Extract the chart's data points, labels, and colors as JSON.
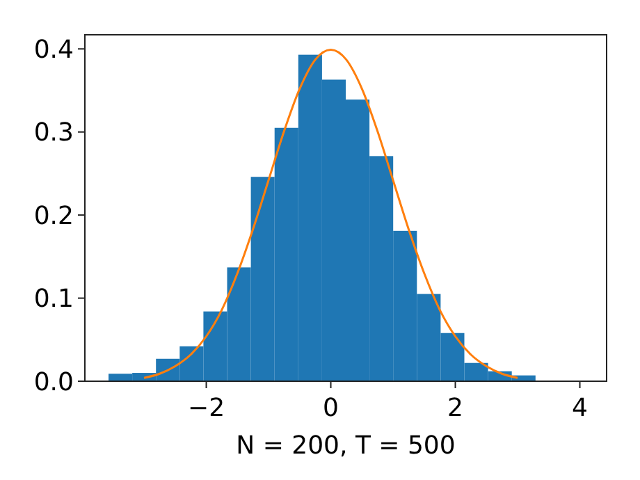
{
  "chart_data": {
    "type": "histogram",
    "xlabel": "N = 200, T = 500",
    "bins": [
      -3.57,
      -3.189,
      -2.808,
      -2.427,
      -2.046,
      -1.665,
      -1.284,
      -0.903,
      -0.522,
      -0.141,
      0.24,
      0.621,
      1.002,
      1.383,
      1.764,
      2.145,
      2.526,
      2.907,
      3.288
    ],
    "series": [
      {
        "color": "#1f77b4",
        "values": [
          0.009,
          0.01,
          0.027,
          0.042,
          0.084,
          0.137,
          0.246,
          0.305,
          0.393,
          0.363,
          0.339,
          0.271,
          0.181,
          0.105,
          0.058,
          0.022,
          0.012,
          0.007
        ]
      },
      {
        "type": "line",
        "color": "#ff7f0e",
        "x": [
          -3,
          -2.75,
          -2.5,
          -2.25,
          -2,
          -1.75,
          -1.5,
          -1.25,
          -1,
          -0.75,
          -0.5,
          -0.25,
          0,
          0.25,
          0.5,
          0.75,
          1,
          1.25,
          1.5,
          1.75,
          2,
          2.25,
          2.5,
          2.75,
          3
        ],
        "values": [
          0.004,
          0.009,
          0.018,
          0.032,
          0.054,
          0.086,
          0.13,
          0.183,
          0.242,
          0.301,
          0.352,
          0.387,
          0.399,
          0.387,
          0.352,
          0.301,
          0.242,
          0.183,
          0.13,
          0.086,
          0.054,
          0.032,
          0.018,
          0.009,
          0.004
        ]
      }
    ],
    "xlim": [
      -3.95,
      4.43
    ],
    "ylim": [
      0,
      0.417
    ],
    "xticks": [
      {
        "value": -2,
        "label": "−2"
      },
      0,
      2,
      4
    ],
    "yticks": [
      {
        "value": 0,
        "label": "0.0"
      },
      0.1,
      0.2,
      0.3,
      0.4
    ],
    "grid": false,
    "marker": "none",
    "line_style": "solid"
  }
}
